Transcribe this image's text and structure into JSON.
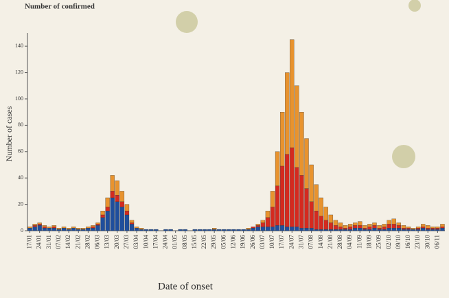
{
  "chart_data": {
    "type": "stacked_bar",
    "title": "Number of confirmed",
    "y_label": "Number of cases",
    "x_label": "Date of onset",
    "categories": [
      "17/01",
      null,
      "24/01",
      null,
      "31/01",
      null,
      "07/02",
      null,
      "14/02",
      null,
      "21/02",
      null,
      "28/02",
      null,
      "06/03",
      null,
      "13/03",
      null,
      "20/03",
      null,
      "27/03",
      null,
      "03/04",
      null,
      "10/04",
      null,
      "17/04",
      null,
      "24/04",
      null,
      "01/05",
      null,
      "08/05",
      null,
      "15/05",
      null,
      "22/05",
      null,
      "29/05",
      null,
      "05/06",
      null,
      "12/06",
      null,
      "19/06",
      null,
      "26/06",
      null,
      "03/07",
      null,
      "10/07",
      null,
      "17/07",
      null,
      "24/07",
      null,
      "31/07",
      null,
      "07/08",
      null,
      "14/08",
      null,
      "21/08",
      null,
      "28/08",
      null,
      "04/09",
      null,
      "11/09",
      null,
      "18/09",
      null,
      "25/09",
      null,
      "02/10",
      null,
      "09/10",
      null,
      "16/10",
      null,
      "23/10",
      null,
      "30/10",
      null,
      "06/11",
      null
    ],
    "series": [
      {
        "color": "#1f4e9c",
        "values": [
          2,
          3,
          4,
          2,
          2,
          2,
          1,
          2,
          1,
          2,
          1,
          1,
          2,
          2,
          4,
          10,
          15,
          25,
          22,
          18,
          12,
          5,
          2,
          1,
          1,
          1,
          1,
          0,
          1,
          1,
          0,
          1,
          1,
          0,
          1,
          1,
          1,
          1,
          1,
          1,
          1,
          1,
          1,
          1,
          1,
          1,
          2,
          3,
          3,
          3,
          3,
          4,
          4,
          3,
          3,
          3,
          2,
          2,
          2,
          1,
          1,
          1,
          1,
          1,
          1,
          1,
          1,
          2,
          2,
          1,
          1,
          2,
          1,
          1,
          2,
          2,
          2,
          1,
          1,
          1,
          1,
          2,
          1,
          1,
          1,
          2
        ]
      },
      {
        "color": "#d42a1f",
        "values": [
          0,
          1,
          1,
          1,
          0,
          1,
          0,
          0,
          0,
          0,
          0,
          0,
          0,
          1,
          1,
          2,
          3,
          5,
          5,
          4,
          3,
          1,
          0,
          0,
          0,
          0,
          0,
          0,
          0,
          0,
          0,
          0,
          0,
          0,
          0,
          0,
          0,
          0,
          0,
          0,
          0,
          0,
          0,
          0,
          0,
          0,
          1,
          1,
          3,
          7,
          15,
          30,
          45,
          55,
          60,
          45,
          40,
          30,
          20,
          14,
          10,
          7,
          5,
          3,
          2,
          1,
          2,
          2,
          2,
          1,
          2,
          2,
          1,
          2,
          3,
          3,
          2,
          1,
          1,
          0,
          1,
          1,
          1,
          1,
          1,
          1
        ]
      },
      {
        "color": "#e8932e",
        "values": [
          1,
          1,
          1,
          1,
          1,
          1,
          1,
          1,
          1,
          1,
          1,
          1,
          1,
          1,
          1,
          3,
          7,
          12,
          11,
          8,
          5,
          2,
          1,
          1,
          0,
          0,
          0,
          0,
          0,
          0,
          0,
          0,
          0,
          0,
          0,
          0,
          0,
          0,
          1,
          0,
          0,
          0,
          0,
          0,
          0,
          1,
          0,
          1,
          2,
          5,
          12,
          26,
          41,
          62,
          82,
          62,
          48,
          38,
          28,
          20,
          14,
          10,
          6,
          4,
          3,
          2,
          2,
          2,
          3,
          2,
          2,
          2,
          2,
          2,
          3,
          4,
          2,
          2,
          1,
          1,
          1,
          2,
          2,
          1,
          1,
          2
        ]
      }
    ],
    "ylim": [
      0,
      150
    ],
    "yticks": [
      0,
      20,
      40,
      60,
      80,
      100,
      120,
      140
    ]
  }
}
